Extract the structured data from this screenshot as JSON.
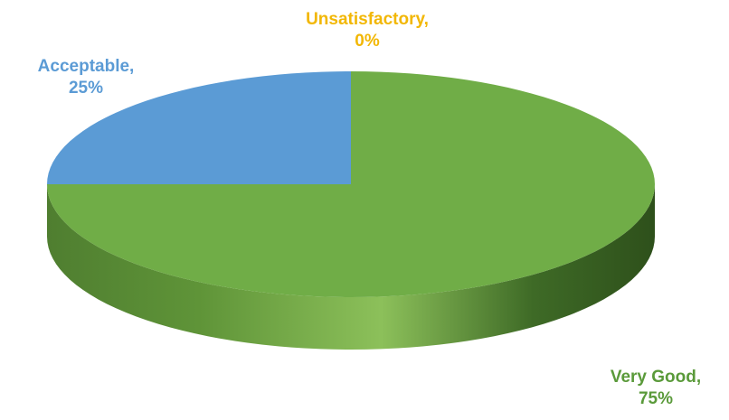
{
  "chart_data": {
    "type": "pie",
    "style": "3d",
    "title": "",
    "legend": "none",
    "slices": [
      {
        "name": "Unsatisfactory",
        "value": 0,
        "label": "Unsatisfactory,",
        "percent": "0%",
        "color": "#FFC000"
      },
      {
        "name": "Very Good",
        "value": 75,
        "label": "Very Good,",
        "percent": "75%",
        "color": "#70AD47"
      },
      {
        "name": "Acceptable",
        "value": 25,
        "label": "Acceptable,",
        "percent": "25%",
        "color": "#5B9BD5"
      }
    ],
    "label_colors": {
      "Unsatisfactory": "#F2B705",
      "Very Good": "#5A9A3A",
      "Acceptable": "#5B9BD5"
    }
  }
}
